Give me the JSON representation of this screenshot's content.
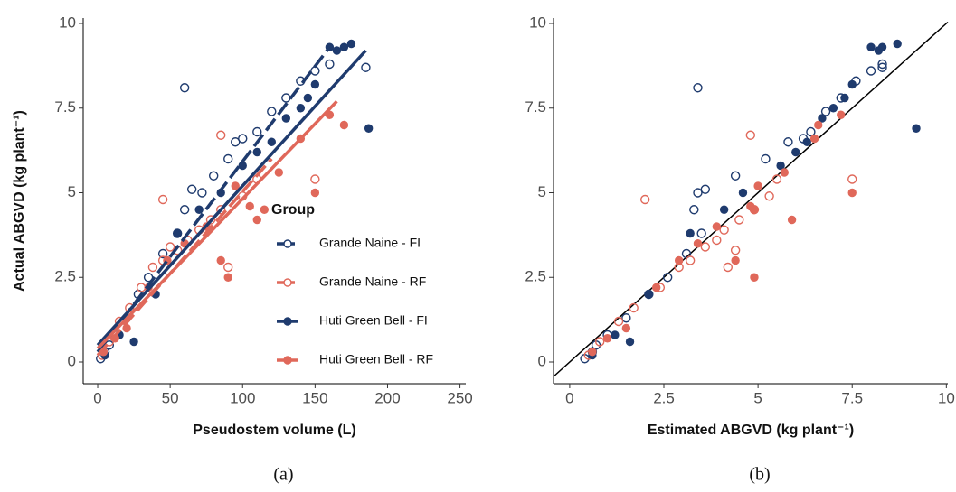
{
  "chart_data": [
    {
      "type": "scatter",
      "caption": "(a)",
      "x_label": "Pseudostem volume (L)",
      "y_label": "Actual ABGVD (kg plant⁻¹)",
      "xlim": [
        -10,
        254
      ],
      "ylim": [
        -0.64,
        10.16
      ],
      "xticks": [
        0,
        50,
        100,
        150,
        200,
        250
      ],
      "yticks": [
        0,
        2.5,
        5,
        7.5,
        10
      ],
      "legend_title": "Group",
      "legend_position": "center-right",
      "series": [
        {
          "name": "Grande Naine - FI",
          "color": "#1f3b6e",
          "marker": "open",
          "dash": true,
          "x": [
            2,
            5,
            8,
            12,
            20,
            28,
            35,
            45,
            55,
            60,
            65,
            72,
            80,
            90,
            95,
            100,
            110,
            120,
            130,
            140,
            150,
            160,
            185,
            60
          ],
          "values": [
            0.1,
            0.3,
            0.5,
            0.8,
            1.3,
            2.0,
            2.5,
            3.2,
            3.8,
            4.5,
            5.1,
            5.0,
            5.5,
            6.0,
            6.5,
            6.6,
            6.8,
            7.4,
            7.8,
            8.3,
            8.6,
            8.8,
            8.7,
            8.1
          ],
          "fit": {
            "x": [
              0,
              160
            ],
            "y": [
              0.3,
              9.3
            ]
          }
        },
        {
          "name": "Grande Naine - RF",
          "color": "#e0685a",
          "marker": "open",
          "dash": true,
          "x": [
            3,
            8,
            15,
            22,
            30,
            38,
            45,
            50,
            55,
            62,
            70,
            78,
            85,
            90,
            100,
            110,
            150,
            45,
            85
          ],
          "values": [
            0.2,
            0.6,
            1.2,
            1.6,
            2.2,
            2.8,
            3.0,
            3.4,
            3.3,
            3.6,
            3.9,
            4.2,
            4.5,
            2.8,
            4.9,
            5.4,
            5.4,
            4.8,
            6.7
          ],
          "fit": {
            "x": [
              0,
              120
            ],
            "y": [
              0.2,
              6.0
            ]
          }
        },
        {
          "name": "Huti Green Bell - FI",
          "color": "#1f3b6e",
          "marker": "filled",
          "dash": false,
          "x": [
            5,
            15,
            25,
            40,
            55,
            70,
            85,
            100,
            110,
            120,
            130,
            140,
            145,
            150,
            160,
            165,
            170,
            175,
            187
          ],
          "values": [
            0.2,
            0.8,
            0.6,
            2.0,
            3.8,
            4.5,
            5.0,
            5.8,
            6.2,
            6.5,
            7.2,
            7.5,
            7.8,
            8.2,
            9.3,
            9.2,
            9.3,
            9.4,
            6.9
          ],
          "fit": {
            "x": [
              0,
              185
            ],
            "y": [
              0.5,
              9.2
            ]
          }
        },
        {
          "name": "Huti Green Bell - RF",
          "color": "#e0685a",
          "marker": "filled",
          "dash": false,
          "x": [
            4,
            12,
            20,
            35,
            48,
            60,
            75,
            85,
            95,
            105,
            115,
            125,
            140,
            150,
            160,
            170,
            110,
            90
          ],
          "values": [
            0.3,
            0.7,
            1.0,
            2.2,
            3.0,
            3.5,
            4.0,
            3.0,
            5.2,
            4.6,
            4.5,
            5.6,
            6.6,
            5.0,
            7.3,
            7.0,
            4.2,
            2.5
          ],
          "fit": {
            "x": [
              0,
              165
            ],
            "y": [
              0.4,
              7.7
            ]
          }
        }
      ]
    },
    {
      "type": "scatter",
      "caption": "(b)",
      "x_label": "Estimated ABGVD (kg plant⁻¹)",
      "xlim": [
        -0.43,
        10.04
      ],
      "ylim": [
        -0.64,
        10.16
      ],
      "xticks": [
        0,
        2.5,
        5,
        7.5,
        10
      ],
      "yticks": [
        0,
        2.5,
        5,
        7.5,
        10
      ],
      "reference_line": {
        "x": [
          -0.43,
          10.04
        ],
        "y": [
          -0.43,
          10.04
        ]
      },
      "series": [
        {
          "color": "#1f3b6e",
          "marker": "open",
          "x": [
            0.4,
            0.6,
            0.7,
            1.0,
            1.5,
            2.1,
            2.6,
            3.1,
            3.5,
            3.3,
            3.6,
            3.4,
            4.4,
            5.2,
            5.8,
            6.2,
            6.4,
            6.8,
            7.2,
            7.6,
            8.0,
            8.3,
            8.3,
            3.4
          ],
          "values": [
            0.1,
            0.3,
            0.5,
            0.8,
            1.3,
            2.0,
            2.5,
            3.2,
            3.8,
            4.5,
            5.1,
            5.0,
            5.5,
            6.0,
            6.5,
            6.6,
            6.8,
            7.4,
            7.8,
            8.3,
            8.6,
            8.8,
            8.7,
            8.1
          ]
        },
        {
          "color": "#e0685a",
          "marker": "open",
          "x": [
            0.5,
            0.8,
            1.3,
            1.7,
            2.4,
            2.9,
            3.2,
            3.6,
            4.4,
            3.9,
            4.1,
            4.5,
            4.9,
            4.2,
            5.3,
            5.5,
            7.5,
            2.0,
            4.8
          ],
          "values": [
            0.2,
            0.6,
            1.2,
            1.6,
            2.2,
            2.8,
            3.0,
            3.4,
            3.3,
            3.6,
            3.9,
            4.2,
            4.5,
            2.8,
            4.9,
            5.4,
            5.4,
            4.8,
            6.7
          ]
        },
        {
          "color": "#1f3b6e",
          "marker": "filled",
          "x": [
            0.6,
            1.2,
            1.6,
            2.1,
            3.2,
            4.1,
            4.6,
            5.6,
            6.0,
            6.3,
            6.7,
            7.0,
            7.3,
            7.5,
            8.0,
            8.2,
            8.3,
            8.7,
            9.2
          ],
          "values": [
            0.2,
            0.8,
            0.6,
            2.0,
            3.8,
            4.5,
            5.0,
            5.8,
            6.2,
            6.5,
            7.2,
            7.5,
            7.8,
            8.2,
            9.3,
            9.2,
            9.3,
            9.4,
            6.9
          ]
        },
        {
          "color": "#e0685a",
          "marker": "filled",
          "x": [
            0.6,
            1.0,
            1.5,
            2.3,
            2.9,
            3.4,
            3.9,
            4.4,
            5.0,
            4.8,
            4.9,
            5.7,
            6.5,
            7.5,
            7.2,
            6.6,
            5.9,
            4.9
          ],
          "values": [
            0.3,
            0.7,
            1.0,
            2.2,
            3.0,
            3.5,
            4.0,
            3.0,
            5.2,
            4.6,
            4.5,
            5.6,
            6.6,
            5.0,
            7.3,
            7.0,
            4.2,
            2.5
          ]
        }
      ]
    }
  ]
}
